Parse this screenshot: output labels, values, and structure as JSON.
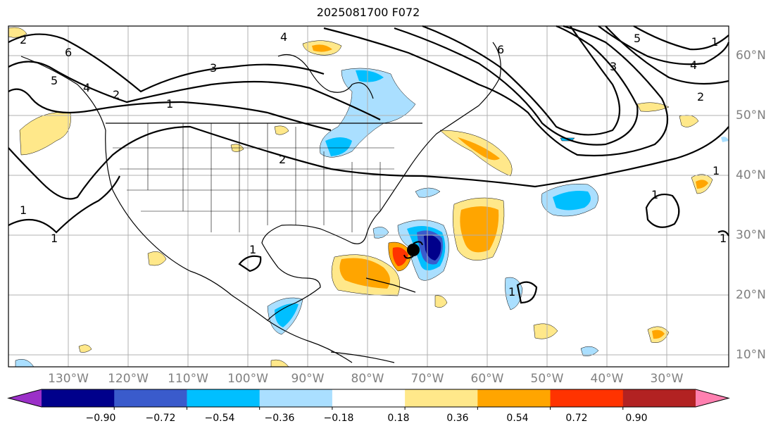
{
  "title": "2025081700 F072",
  "map": {
    "longitude_labels": [
      "130°W",
      "120°W",
      "110°W",
      "100°W",
      "90°W",
      "80°W",
      "70°W",
      "60°W",
      "50°W",
      "40°W",
      "30°W"
    ],
    "latitude_labels": [
      "60°N",
      "50°N",
      "40°N",
      "30°N",
      "20°N",
      "10°N"
    ],
    "contour_labels": [
      "2",
      "6",
      "5",
      "4",
      "3",
      "2",
      "1",
      "1",
      "2",
      "1",
      "1",
      "4",
      "6",
      "5",
      "4",
      "3",
      "2",
      "1",
      "1",
      "1",
      "1",
      "1"
    ],
    "storm_marker": "black filled circle with hurricane symbol near 28°N 71°W"
  },
  "colorbar": {
    "ticks": [
      "−0.90",
      "−0.72",
      "−0.54",
      "−0.36",
      "−0.18",
      "0.18",
      "0.36",
      "0.54",
      "0.72",
      "0.90"
    ],
    "colors": [
      "#9b30c8",
      "#00008b",
      "#3a5bcc",
      "#00bfff",
      "#aadfff",
      "#ffffff",
      "#ffe88a",
      "#ffa500",
      "#ff3300",
      "#b22222",
      "#ff80b0"
    ],
    "extend": "both"
  }
}
